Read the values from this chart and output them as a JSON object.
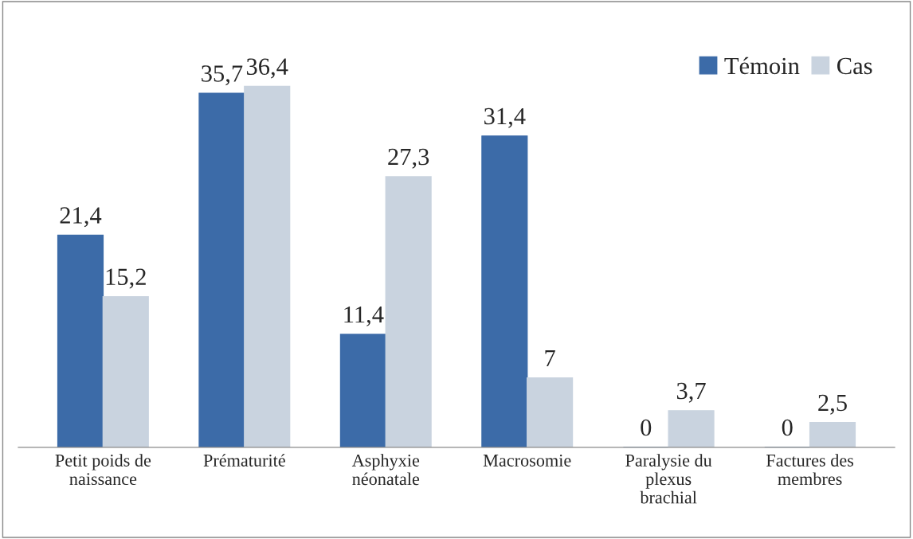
{
  "chart_data": {
    "type": "bar",
    "categories": [
      "Petit poids de\nnaissance",
      "Prématurité",
      "Asphyxie\nnéonatale",
      "Macrosomie",
      "Paralysie du\nplexus\nbrachial",
      "Factures des\nmembres"
    ],
    "series": [
      {
        "name": "Témoin",
        "color": "#3c6ba8",
        "values": [
          21.4,
          35.7,
          11.4,
          31.4,
          0,
          0
        ],
        "value_labels": [
          "21,4",
          "35,7",
          "11,4",
          "31,4",
          "0",
          "0"
        ]
      },
      {
        "name": "Cas",
        "color": "#c9d3df",
        "values": [
          15.2,
          36.4,
          27.3,
          7,
          3.7,
          2.5
        ],
        "value_labels": [
          "15,2",
          "36,4",
          "27,3",
          "7",
          "3,7",
          "2,5"
        ]
      }
    ],
    "legend": "top right",
    "grid": false
  }
}
